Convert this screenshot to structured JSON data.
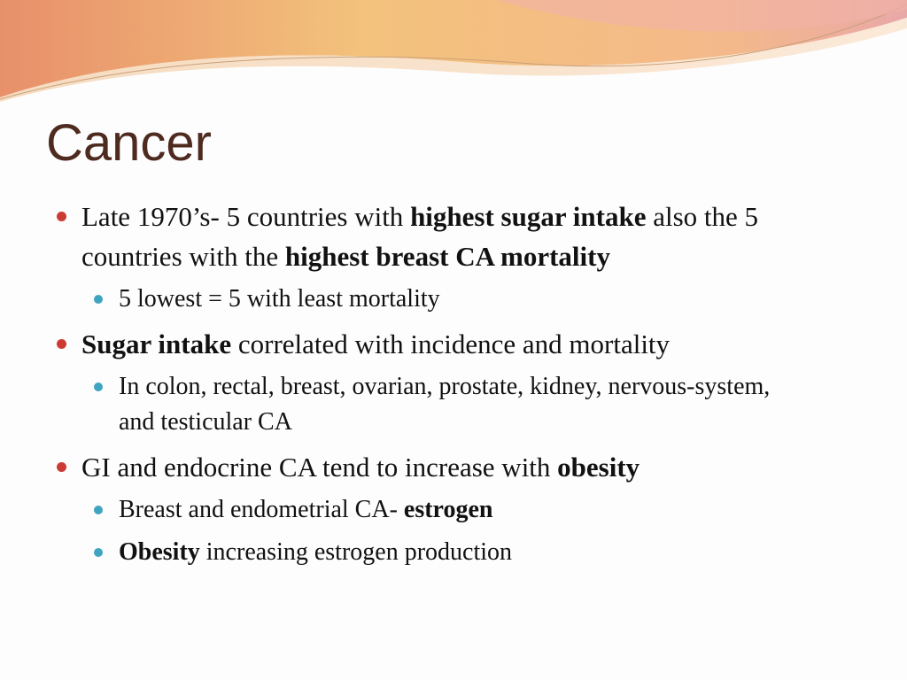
{
  "title": "Cancer",
  "bullets": [
    {
      "runs": [
        {
          "text": "Late 1970’s- 5 countries with ",
          "bold": false
        },
        {
          "text": "highest sugar intake",
          "bold": true
        },
        {
          "text": " also the 5 countries with the ",
          "bold": false
        },
        {
          "text": "highest breast CA mortality",
          "bold": true
        }
      ],
      "sub": [
        {
          "runs": [
            {
              "text": "5 lowest = 5 with least mortality",
              "bold": false
            }
          ]
        }
      ]
    },
    {
      "runs": [
        {
          "text": "Sugar intake",
          "bold": true
        },
        {
          "text": " correlated with incidence and mortality",
          "bold": false
        }
      ],
      "sub": [
        {
          "runs": [
            {
              "text": "In colon, rectal, breast, ovarian, prostate, kidney, nervous-system, and testicular CA",
              "bold": false
            }
          ]
        }
      ]
    },
    {
      "runs": [
        {
          "text": "GI and endocrine CA tend to increase with ",
          "bold": false
        },
        {
          "text": "obesity",
          "bold": true
        }
      ],
      "sub": [
        {
          "runs": [
            {
              "text": "Breast and endometrial CA- ",
              "bold": false
            },
            {
              "text": "estrogen",
              "bold": true
            }
          ]
        },
        {
          "runs": [
            {
              "text": "Obesity",
              "bold": true
            },
            {
              "text": " increasing estrogen production",
              "bold": false
            }
          ]
        }
      ]
    }
  ]
}
